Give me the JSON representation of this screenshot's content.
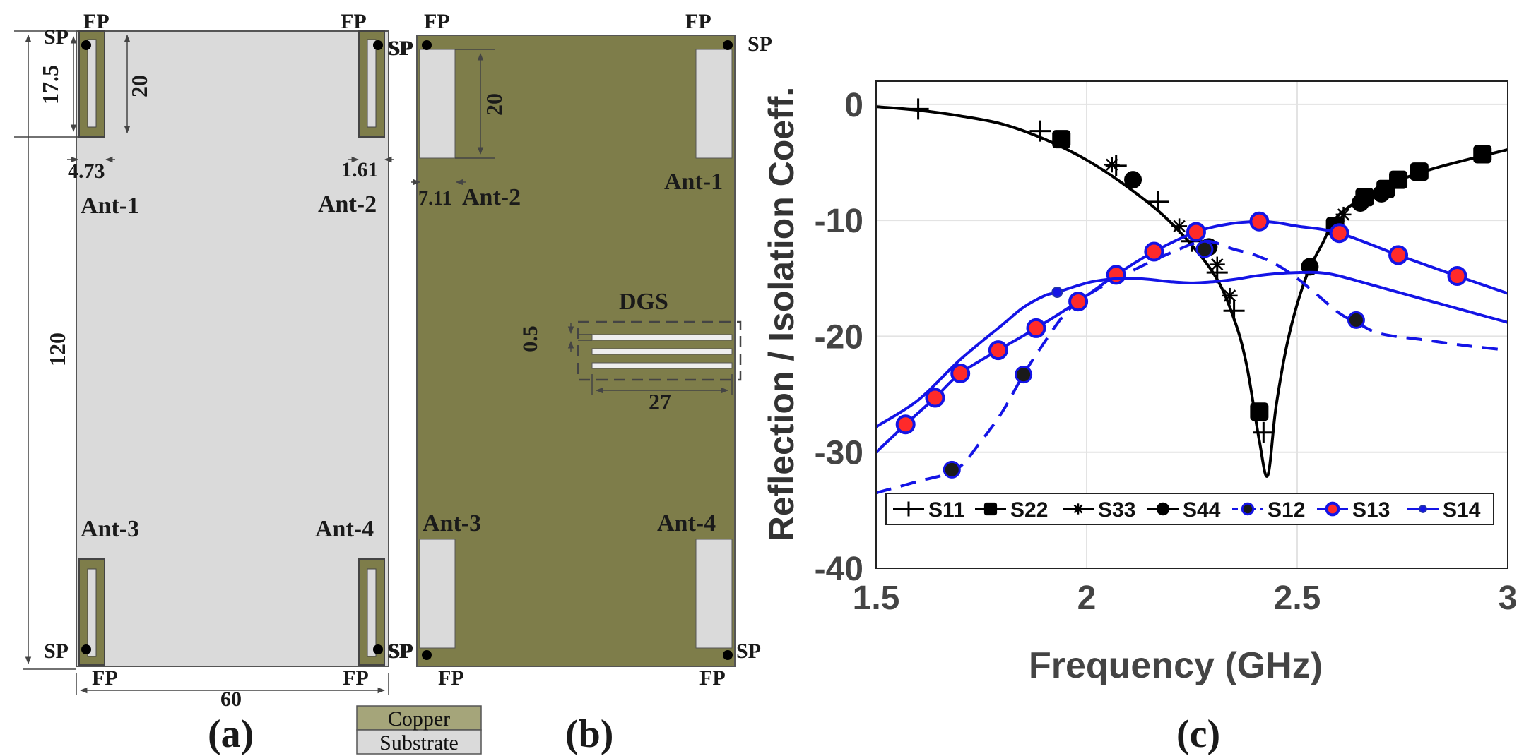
{
  "colors": {
    "copper": "#7e7d4a",
    "substrate": "#dadada",
    "outline": "#555555",
    "black_series": "#000000",
    "blue_series": "#1414e6",
    "red_marker": "#ff2a2a",
    "grid": "#e3e3e3"
  },
  "panel_a": {
    "caption": "(a)",
    "ant_labels": [
      "Ant-1",
      "Ant-2",
      "Ant-3",
      "Ant-4"
    ],
    "fp": "FP",
    "sp": "SP",
    "dim_slot_length": "17.5",
    "dim_element_length": "20",
    "dim_element_width": "4.73",
    "dim_slot_width": "1.61",
    "dim_height": "120",
    "dim_width": "60"
  },
  "panel_b": {
    "caption": "(b)",
    "ant_labels": [
      "Ant-1",
      "Ant-2",
      "Ant-3",
      "Ant-4"
    ],
    "fp": "FP",
    "sp": "SP",
    "dim_patch_length": "20",
    "dim_patch_width": "7.11",
    "dgs_label": "DGS",
    "dim_dgs_gap": "0.5",
    "dim_dgs_length": "27"
  },
  "legend_box": {
    "copper": "Copper",
    "substrate": "Substrate"
  },
  "panel_c": {
    "caption": "(c)"
  },
  "chart_data": {
    "type": "line",
    "xlabel": "Frequency (GHz)",
    "ylabel": "Reflection / Isolation Coeff.",
    "xlim": [
      1.5,
      3.0
    ],
    "ylim": [
      -40,
      2
    ],
    "xticks": [
      "1.5",
      "2",
      "2.5",
      "3"
    ],
    "yticks": [
      "0",
      "-10",
      "-20",
      "-30",
      "-40"
    ],
    "grid": true,
    "legend_position": "bottom",
    "series": [
      {
        "name": "S11",
        "style": "solid",
        "color": "black",
        "marker": "plus",
        "x": [
          1.5,
          1.6,
          1.7,
          1.8,
          1.9,
          2.0,
          2.1,
          2.2,
          2.3,
          2.35,
          2.38,
          2.41,
          2.43,
          2.45,
          2.48,
          2.52,
          2.56,
          2.6,
          2.7,
          2.8,
          2.9,
          3.0
        ],
        "y": [
          -0.2,
          -0.5,
          -1.0,
          -1.7,
          -3.0,
          -4.8,
          -7.2,
          -10.2,
          -14.5,
          -18.5,
          -22.5,
          -29.0,
          -32.0,
          -26.0,
          -20.0,
          -15.0,
          -12.0,
          -9.5,
          -7.2,
          -5.8,
          -4.8,
          -3.9
        ],
        "marker_x": [
          1.6,
          1.89,
          2.07,
          2.17,
          2.25,
          2.31,
          2.35,
          2.42
        ],
        "marker_y": [
          -0.4,
          -2.3,
          -5.3,
          -8.4,
          -11.8,
          -14.5,
          -17.8,
          -28.3
        ]
      },
      {
        "name": "S22",
        "style": "solid",
        "color": "black",
        "marker": "square",
        "marker_x": [
          1.94,
          2.41,
          2.59,
          2.66,
          2.71,
          2.74,
          2.79,
          2.94
        ],
        "marker_y": [
          -3.0,
          -26.5,
          -10.5,
          -8.0,
          -7.3,
          -6.5,
          -5.8,
          -4.3
        ]
      },
      {
        "name": "S33",
        "style": "solid",
        "color": "black",
        "marker": "asterisk",
        "marker_x": [
          2.06,
          2.22,
          2.31,
          2.34,
          2.61
        ],
        "marker_y": [
          -5.2,
          -10.5,
          -13.8,
          -16.5,
          -9.5
        ]
      },
      {
        "name": "S44",
        "style": "solid",
        "color": "black",
        "marker": "circle",
        "marker_x": [
          2.11,
          2.29,
          2.53,
          2.65,
          2.7
        ],
        "marker_y": [
          -6.5,
          -12.3,
          -14.0,
          -8.5,
          -7.7
        ]
      },
      {
        "name": "S12",
        "style": "dashed",
        "color": "blue",
        "marker": "circle",
        "x": [
          1.5,
          1.6,
          1.69,
          1.75,
          1.8,
          1.85,
          1.9,
          1.95,
          2.0,
          2.1,
          2.2,
          2.28,
          2.35,
          2.4,
          2.45,
          2.5,
          2.55,
          2.6,
          2.65,
          2.7,
          2.8,
          2.9,
          3.0
        ],
        "y": [
          -33.5,
          -32.5,
          -31.5,
          -29.0,
          -26.5,
          -23.3,
          -20.5,
          -18.0,
          -16.5,
          -14.5,
          -12.8,
          -11.8,
          -12.5,
          -13.0,
          -13.8,
          -15.0,
          -16.5,
          -18.0,
          -19.0,
          -19.8,
          -20.3,
          -20.8,
          -21.2
        ],
        "marker_x": [
          1.68,
          1.85,
          2.28,
          2.64
        ],
        "marker_y": [
          -31.5,
          -23.3,
          -12.5,
          -18.6
        ]
      },
      {
        "name": "S13",
        "style": "solid",
        "color": "blue",
        "marker": "circle_red",
        "x": [
          1.5,
          1.57,
          1.64,
          1.7,
          1.79,
          1.88,
          1.98,
          2.07,
          2.16,
          2.26,
          2.34,
          2.41,
          2.45,
          2.5,
          2.6,
          2.74,
          2.88,
          3.0
        ],
        "y": [
          -30.0,
          -27.6,
          -25.3,
          -23.2,
          -21.2,
          -19.3,
          -17.0,
          -14.7,
          -12.7,
          -11.0,
          -10.3,
          -10.1,
          -10.2,
          -10.5,
          -11.1,
          -13.0,
          -14.8,
          -16.3
        ],
        "marker_x": [
          1.57,
          1.64,
          1.7,
          1.79,
          1.88,
          1.98,
          2.07,
          2.16,
          2.26,
          2.41,
          2.6,
          2.74,
          2.88
        ],
        "marker_y": [
          -27.6,
          -25.3,
          -23.2,
          -21.2,
          -19.3,
          -17.0,
          -14.7,
          -12.7,
          -11.0,
          -10.1,
          -11.1,
          -13.0,
          -14.8
        ]
      },
      {
        "name": "S14",
        "style": "solid",
        "color": "blue",
        "marker": "dot",
        "x": [
          1.5,
          1.6,
          1.7,
          1.8,
          1.85,
          1.9,
          1.93,
          2.0,
          2.05,
          2.1,
          2.15,
          2.2,
          2.25,
          2.3,
          2.35,
          2.4,
          2.45,
          2.5,
          2.55,
          2.6,
          2.7,
          2.8,
          2.9,
          3.0
        ],
        "y": [
          -27.8,
          -25.5,
          -22.0,
          -19.0,
          -17.5,
          -16.5,
          -16.2,
          -15.4,
          -15.1,
          -15.0,
          -15.1,
          -15.3,
          -15.4,
          -15.3,
          -15.1,
          -14.8,
          -14.6,
          -14.5,
          -14.5,
          -14.8,
          -15.8,
          -16.8,
          -17.8,
          -18.8
        ],
        "marker_x": [
          1.93
        ],
        "marker_y": [
          -16.2
        ]
      }
    ]
  }
}
